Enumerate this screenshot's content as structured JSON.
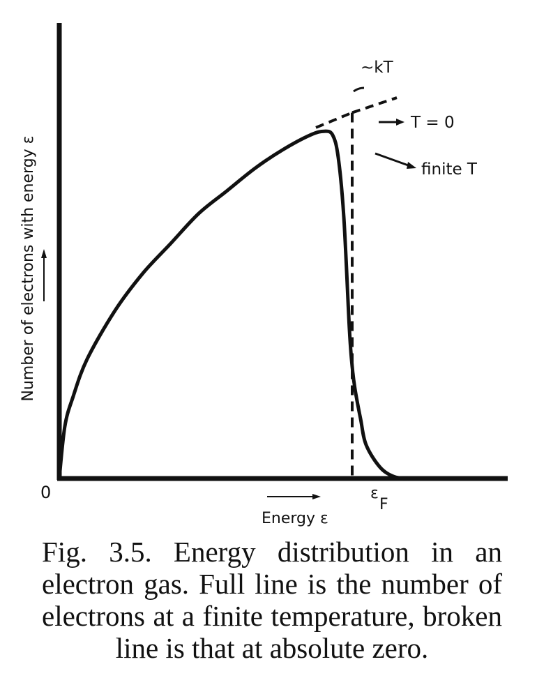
{
  "chart_data": {
    "type": "line",
    "title": "",
    "xlabel": "Energy ε",
    "ylabel": "Number of electrons with energy ε",
    "origin_label": "0",
    "fermi_label": "ε",
    "fermi_subscript": "F",
    "xlim": [
      0,
      1.6
    ],
    "ylim": [
      0,
      1.22
    ],
    "series": [
      {
        "name": "finite T",
        "style": "solid",
        "x": [
          0,
          0.02,
          0.05,
          0.1,
          0.2,
          0.3,
          0.4,
          0.5,
          0.6,
          0.7,
          0.8,
          0.9,
          0.95,
          0.98,
          1.0,
          1.02,
          1.04,
          1.05,
          1.06,
          1.08,
          1.1,
          1.15,
          1.2,
          1.25
        ],
        "y": [
          0,
          0.14,
          0.22,
          0.32,
          0.45,
          0.55,
          0.63,
          0.71,
          0.77,
          0.83,
          0.88,
          0.92,
          0.93,
          0.92,
          0.86,
          0.7,
          0.4,
          0.3,
          0.24,
          0.16,
          0.09,
          0.03,
          0.005,
          0.0
        ]
      },
      {
        "name": "T = 0",
        "style": "dashed",
        "x": [
          0.92,
          1.05,
          1.05,
          1.05,
          1.21
        ],
        "y": [
          0.94,
          0.98,
          0.98,
          0.0,
          1.02
        ]
      }
    ],
    "annotations": [
      {
        "text": "~kT"
      },
      {
        "text": "T = 0"
      },
      {
        "text": "finite T"
      }
    ]
  },
  "caption": {
    "line1": "Fig. 3.5. Energy distribution in an",
    "line2": "electron gas. Full line is the number of",
    "line3": "electrons at a finite temperature, broken",
    "line4": "line is that at absolute zero."
  }
}
